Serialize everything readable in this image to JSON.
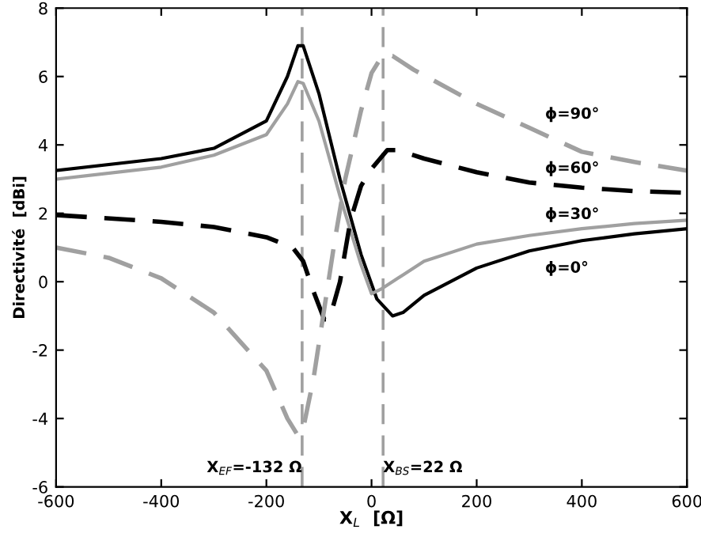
{
  "chart_data": {
    "type": "line",
    "xlabel": "X$_{L}$  [Ω]",
    "ylabel": "Directivité  [dBi]",
    "xlim": [
      -600,
      600
    ],
    "ylim": [
      -6,
      8
    ],
    "xticks": [
      -600,
      -400,
      -200,
      0,
      200,
      400,
      600
    ],
    "yticks": [
      -6,
      -4,
      -2,
      0,
      2,
      4,
      6,
      8
    ],
    "grid": false,
    "legend": false,
    "series": [
      {
        "name": "ϕ=0°",
        "color": "#000000",
        "line_style": "solid",
        "x": [
          -600,
          -400,
          -300,
          -200,
          -160,
          -140,
          -130,
          -100,
          -60,
          -20,
          10,
          40,
          60,
          100,
          200,
          300,
          400,
          500,
          600
        ],
        "values": [
          3.25,
          3.6,
          3.9,
          4.7,
          6.0,
          6.9,
          6.9,
          5.5,
          3.0,
          0.8,
          -0.5,
          -1.0,
          -0.9,
          -0.4,
          0.4,
          0.9,
          1.2,
          1.4,
          1.55
        ]
      },
      {
        "name": "ϕ=30°",
        "color": "#a0a0a0",
        "line_style": "solid",
        "x": [
          -600,
          -400,
          -300,
          -200,
          -160,
          -140,
          -130,
          -100,
          -60,
          -20,
          0,
          20,
          50,
          100,
          200,
          300,
          400,
          500,
          600
        ],
        "values": [
          3.0,
          3.35,
          3.7,
          4.3,
          5.2,
          5.85,
          5.8,
          4.7,
          2.5,
          0.5,
          -0.35,
          -0.2,
          0.1,
          0.6,
          1.1,
          1.35,
          1.55,
          1.7,
          1.8
        ]
      },
      {
        "name": "ϕ=60°",
        "color": "#000000",
        "line_style": "dashed",
        "x": [
          -600,
          -400,
          -300,
          -200,
          -150,
          -130,
          -110,
          -90,
          -80,
          -60,
          -40,
          -20,
          0,
          30,
          50,
          100,
          200,
          300,
          400,
          500,
          600
        ],
        "values": [
          1.95,
          1.75,
          1.6,
          1.3,
          1.0,
          0.6,
          -0.3,
          -1.1,
          -1.1,
          0.0,
          1.8,
          2.8,
          3.3,
          3.85,
          3.85,
          3.6,
          3.2,
          2.9,
          2.75,
          2.65,
          2.6
        ]
      },
      {
        "name": "ϕ=90°",
        "color": "#a0a0a0",
        "line_style": "dashed",
        "x": [
          -600,
          -500,
          -400,
          -300,
          -200,
          -160,
          -140,
          -130,
          -110,
          -90,
          -70,
          -50,
          -20,
          0,
          20,
          40,
          80,
          200,
          300,
          400,
          500,
          600
        ],
        "values": [
          1.0,
          0.7,
          0.1,
          -0.9,
          -2.6,
          -4.0,
          -4.5,
          -4.3,
          -2.8,
          -0.8,
          1.2,
          3.0,
          5.0,
          6.1,
          6.6,
          6.6,
          6.2,
          5.2,
          4.5,
          3.8,
          3.5,
          3.25
        ]
      }
    ],
    "ref_lines": [
      {
        "axis": "x",
        "value": -132,
        "label": "X$_{EF}$=-132 Ω",
        "color": "#a0a0a0",
        "line_style": "dashed"
      },
      {
        "axis": "x",
        "value": 22,
        "label": "X$_{BS}$=22 Ω",
        "color": "#a0a0a0",
        "line_style": "dashed"
      }
    ]
  }
}
